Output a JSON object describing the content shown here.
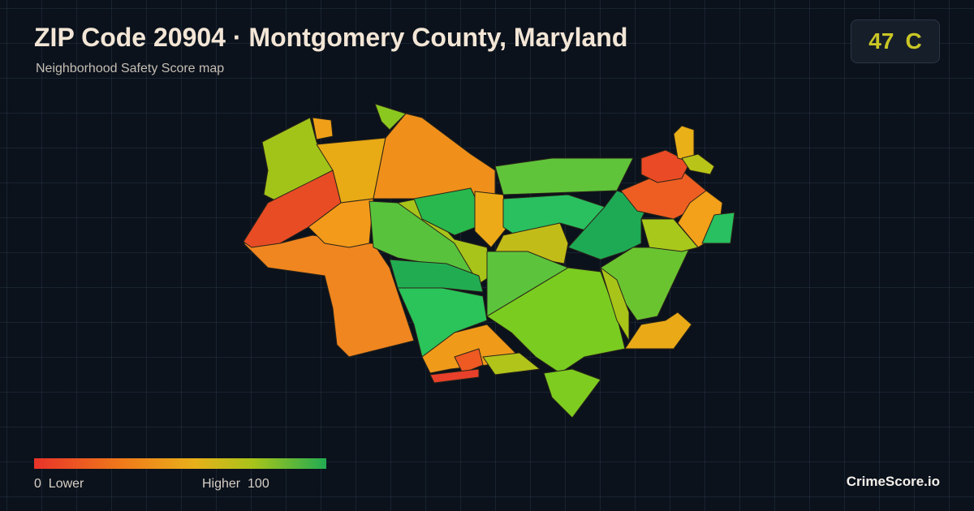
{
  "header": {
    "title": "ZIP Code 20904 · Montgomery County, Maryland",
    "subtitle": "Neighborhood Safety Score map",
    "score": 47,
    "grade": "C"
  },
  "legend": {
    "min": 0,
    "min_label": "Lower",
    "max_label": "Higher",
    "max": 100
  },
  "footer": {
    "brand": "CrimeScore.io"
  }
}
